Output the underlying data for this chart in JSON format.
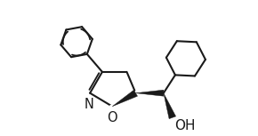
{
  "bg_color": "#ffffff",
  "line_color": "#1a1a1a",
  "line_width": 1.5,
  "font_size": 10.5,
  "N_label": "N",
  "O_label": "O",
  "OH_label": "OH"
}
